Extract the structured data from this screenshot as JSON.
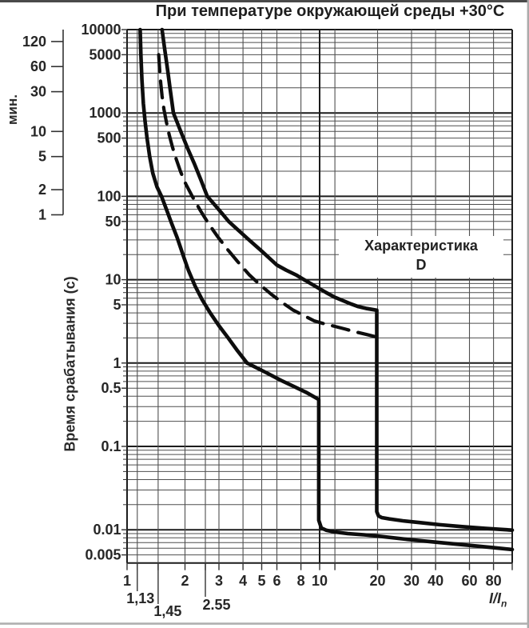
{
  "chart_data": {
    "type": "line",
    "title": "При температуре окружающей среды +30°C",
    "ylabel": "Время срабатывания (с)",
    "xlabel_base": "I/I",
    "xlabel_sub": "n",
    "annotation": {
      "line1": "Характеристика",
      "line2": "D"
    },
    "x_axis": {
      "scale": "log",
      "min": 1,
      "max": 100,
      "labeled_ticks": [
        1,
        2,
        3,
        4,
        5,
        6,
        8,
        10,
        20,
        30,
        40,
        60,
        80
      ],
      "major_gridlines": [
        1,
        10,
        100
      ],
      "minor_gridlines": [
        1.13,
        1.45,
        2,
        2.55,
        3,
        4,
        5,
        6,
        8,
        12,
        20,
        30,
        40,
        60,
        80
      ],
      "special_marks": [
        {
          "value": 1.13,
          "label": "1,13"
        },
        {
          "value": 1.45,
          "label": "1,45"
        },
        {
          "value": 2.55,
          "label": "2.55"
        }
      ]
    },
    "y_axis": {
      "scale": "log",
      "min": 0.004,
      "max": 10000,
      "unit": "s",
      "labeled_ticks": [
        {
          "value": 10000,
          "label": "10000"
        },
        {
          "value": 5000,
          "label": "5000"
        },
        {
          "value": 1000,
          "label": "1000"
        },
        {
          "value": 500,
          "label": "500"
        },
        {
          "value": 100,
          "label": "100"
        },
        {
          "value": 50,
          "label": "50"
        },
        {
          "value": 10,
          "label": "10"
        },
        {
          "value": 5,
          "label": "5"
        },
        {
          "value": 1,
          "label": "1"
        },
        {
          "value": 0.5,
          "label": "0.5"
        },
        {
          "value": 0.1,
          "label": "0.1"
        },
        {
          "value": 0.01,
          "label": "0.01"
        },
        {
          "value": 0.005,
          "label": "0.005"
        }
      ]
    },
    "minutes_axis": {
      "unit": "мин.",
      "ticks": [
        120,
        60,
        30,
        10,
        5,
        2,
        1
      ]
    },
    "grid_color_minor": "#4f4f4f",
    "grid_color_major": "#1c1c1c",
    "curve_color": "#0d0d0d",
    "series": [
      {
        "name": "lower-boundary",
        "style": "solid",
        "points": [
          [
            1.17,
            10000
          ],
          [
            1.18,
            5000
          ],
          [
            1.195,
            2500
          ],
          [
            1.215,
            1300
          ],
          [
            1.24,
            800
          ],
          [
            1.27,
            500
          ],
          [
            1.31,
            300
          ],
          [
            1.36,
            190
          ],
          [
            1.43,
            130
          ],
          [
            1.51,
            100
          ],
          [
            1.6,
            70
          ],
          [
            1.7,
            48
          ],
          [
            1.82,
            32
          ],
          [
            1.95,
            20
          ],
          [
            2.08,
            13
          ],
          [
            2.25,
            8.5
          ],
          [
            2.45,
            5.8
          ],
          [
            2.7,
            4.0
          ],
          [
            3.0,
            2.8
          ],
          [
            3.35,
            2.0
          ],
          [
            3.75,
            1.4
          ],
          [
            4.2,
            1.0
          ],
          [
            5.2,
            0.78
          ],
          [
            6.3,
            0.62
          ],
          [
            7.4,
            0.52
          ],
          [
            8.6,
            0.44
          ],
          [
            9.9,
            0.365
          ],
          [
            9.9,
            0.013
          ],
          [
            10.2,
            0.0105
          ],
          [
            10.8,
            0.0099
          ],
          [
            12,
            0.0094
          ],
          [
            14,
            0.009
          ],
          [
            17,
            0.0087
          ],
          [
            20,
            0.0084
          ],
          [
            28,
            0.0077
          ],
          [
            40,
            0.0071
          ],
          [
            60,
            0.0065
          ],
          [
            80,
            0.0061
          ],
          [
            100,
            0.0058
          ]
        ]
      },
      {
        "name": "average",
        "style": "dashed",
        "points": [
          [
            1.46,
            5000
          ],
          [
            1.475,
            3400
          ],
          [
            1.495,
            2300
          ],
          [
            1.52,
            1600
          ],
          [
            1.555,
            1100
          ],
          [
            1.6,
            780
          ],
          [
            1.655,
            550
          ],
          [
            1.72,
            390
          ],
          [
            1.8,
            280
          ],
          [
            1.9,
            195
          ],
          [
            2.02,
            140
          ],
          [
            2.18,
            100
          ],
          [
            2.4,
            68
          ],
          [
            2.65,
            47
          ],
          [
            2.95,
            33
          ],
          [
            3.3,
            23.5
          ],
          [
            3.75,
            16.5
          ],
          [
            4.3,
            11.5
          ],
          [
            4.9,
            8.7
          ],
          [
            5.6,
            6.7
          ],
          [
            6.4,
            5.3
          ],
          [
            7.3,
            4.3
          ],
          [
            8.3,
            3.7
          ],
          [
            9.4,
            3.2
          ],
          [
            10.6,
            2.95
          ],
          [
            12,
            2.75
          ],
          [
            13.6,
            2.55
          ],
          [
            15.5,
            2.35
          ],
          [
            17.5,
            2.2
          ],
          [
            19.8,
            2.05
          ]
        ]
      },
      {
        "name": "upper-boundary",
        "style": "solid",
        "points": [
          [
            1.52,
            10000
          ],
          [
            1.566,
            6000
          ],
          [
            1.604,
            4000
          ],
          [
            1.632,
            3000
          ],
          [
            1.671,
            2000
          ],
          [
            1.7,
            1500
          ],
          [
            1.74,
            1000
          ],
          [
            1.9,
            600
          ],
          [
            2.06,
            380
          ],
          [
            2.23,
            250
          ],
          [
            2.41,
            160
          ],
          [
            2.61,
            100
          ],
          [
            2.84,
            80
          ],
          [
            3.1,
            63
          ],
          [
            3.37,
            50
          ],
          [
            3.75,
            40
          ],
          [
            4.3,
            30
          ],
          [
            5.0,
            22
          ],
          [
            5.65,
            17
          ],
          [
            6.0,
            15
          ],
          [
            6.7,
            13
          ],
          [
            7.6,
            11.3
          ],
          [
            8.3,
            10
          ],
          [
            9.8,
            8
          ],
          [
            10.8,
            7
          ],
          [
            11.9,
            6.2
          ],
          [
            13.2,
            5.6
          ],
          [
            14.6,
            5.1
          ],
          [
            15.9,
            4.75
          ],
          [
            17.6,
            4.5
          ],
          [
            19.8,
            4.3
          ],
          [
            19.8,
            0.0165
          ],
          [
            20.2,
            0.0147
          ],
          [
            21,
            0.014
          ],
          [
            23,
            0.0135
          ],
          [
            27,
            0.0128
          ],
          [
            33,
            0.0122
          ],
          [
            42,
            0.0115
          ],
          [
            55,
            0.0109
          ],
          [
            72,
            0.0104
          ],
          [
            100,
            0.0099
          ]
        ]
      }
    ]
  }
}
